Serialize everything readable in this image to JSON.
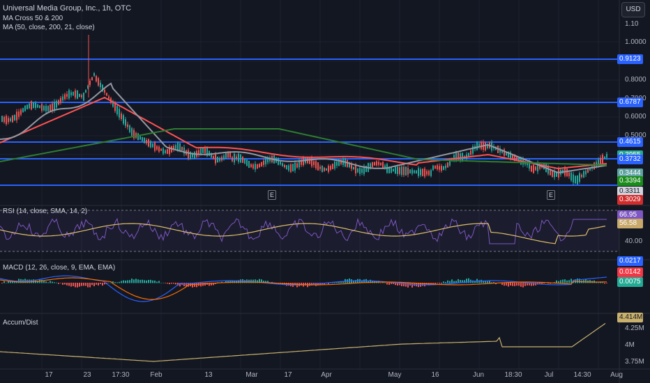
{
  "legend": {
    "title": "Universal Media Group, Inc., 1h, OTC",
    "ind1": "MA Cross 50 & 200",
    "ind2": "MA (50, close, 200, 21, close)",
    "rsi": "RSI (14, close, SMA, 14, 2)",
    "macd": "MACD (12, 26, close, 9, EMA, EMA)",
    "ad": "Accum/Dist"
  },
  "currency_button": "USD",
  "price_axis": [
    "1.10",
    "1.0000",
    "0.8000",
    "0.7000",
    "0.6000",
    "0.5000"
  ],
  "price_tags": [
    {
      "text": "0.9123",
      "bg": "#2962ff",
      "fg": "#ffffff"
    },
    {
      "text": "0.6787",
      "bg": "#2962ff",
      "fg": "#ffffff"
    },
    {
      "text": "0.4615",
      "bg": "#2962ff",
      "fg": "#ffffff"
    },
    {
      "text": "0.3955",
      "bg": "#26a69a",
      "fg": "#ffffff"
    },
    {
      "text": "0.3732",
      "bg": "#2962ff",
      "fg": "#ffffff"
    },
    {
      "text": "0.3444",
      "bg": "#5fa3a1",
      "fg": "#ffffff"
    },
    {
      "text": "0.3394",
      "bg": "#1b8c1b",
      "fg": "#ffffff"
    },
    {
      "text": "0.3311",
      "bg": "#d1d4dc",
      "fg": "#131722"
    },
    {
      "text": "0.3029",
      "bg": "#d22b2b",
      "fg": "#ffffff"
    }
  ],
  "rsi_axis": [
    "40.00"
  ],
  "rsi_tags": [
    {
      "text": "66.95",
      "bg": "#7e57c2",
      "fg": "#ffffff"
    },
    {
      "text": "56.58",
      "bg": "#c8a86b",
      "fg": "#ffffff"
    }
  ],
  "macd_tags": [
    {
      "text": "0.0217",
      "bg": "#2962ff",
      "fg": "#ffffff"
    },
    {
      "text": "0.0142",
      "bg": "#f23645",
      "fg": "#ffffff"
    },
    {
      "text": "0.0075",
      "bg": "#22ab94",
      "fg": "#ffffff"
    }
  ],
  "ad_axis": [
    "4.25M",
    "4M",
    "3.75M"
  ],
  "ad_tag": {
    "text": "4.414M",
    "bg": "#c9b16d",
    "fg": "#131722"
  },
  "time_axis": [
    "17",
    "23",
    "17:30",
    "Feb",
    "13",
    "Mar",
    "17",
    "Apr",
    "May",
    "16",
    "Jun",
    "18:30",
    "Jul",
    "14:30",
    "Aug"
  ],
  "earnings_marker": "E",
  "colors": {
    "background": "#131722",
    "level_line": "#2962ff",
    "ma_fast": "#ff5252",
    "ma_gray": "#9598a1",
    "ma_slow": "#2e7d32",
    "candle_up": "#26a69a",
    "candle_down": "#ef5350",
    "rsi_line": "#7e57c2",
    "rsi_sma": "#e0c06a",
    "macd": "#2962ff",
    "signal": "#ff6d00",
    "ad": "#c9b16d"
  }
}
